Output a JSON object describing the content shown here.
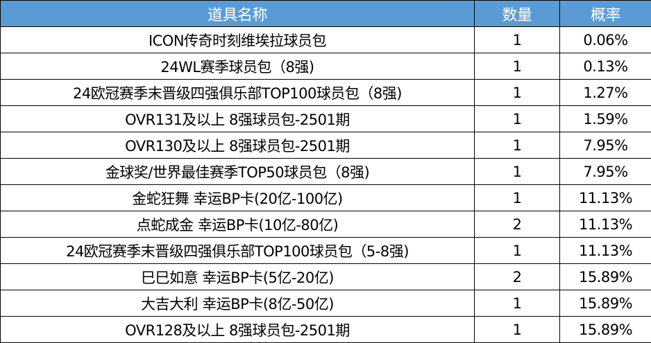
{
  "header": {
    "name": "道具名称",
    "qty": "数量",
    "prob": "概率"
  },
  "header_color": "#5b9bd5",
  "rows": [
    {
      "name": "ICON传奇时刻维埃拉球员包",
      "qty": "1",
      "prob": "0.06%"
    },
    {
      "name": "24WL赛季球员包（8强)",
      "qty": "1",
      "prob": "0.13%"
    },
    {
      "name": "24欧冠赛季末晋级四强俱乐部TOP100球员包（8强)",
      "qty": "1",
      "prob": "1.27%"
    },
    {
      "name": "OVR131及以上 8强球员包-2501期",
      "qty": "1",
      "prob": "1.59%"
    },
    {
      "name": "OVR130及以上 8强球员包-2501期",
      "qty": "1",
      "prob": "7.95%"
    },
    {
      "name": "金球奖/世界最佳赛季TOP50球员包（8强)",
      "qty": "1",
      "prob": "7.95%"
    },
    {
      "name": "金蛇狂舞 幸运BP卡(20亿-100亿)",
      "qty": "1",
      "prob": "11.13%"
    },
    {
      "name": "点蛇成金 幸运BP卡(10亿-80亿)",
      "qty": "2",
      "prob": "11.13%"
    },
    {
      "name": "24欧冠赛季末晋级四强俱乐部TOP100球员包（5-8强)",
      "qty": "1",
      "prob": "11.13%"
    },
    {
      "name": "巳巳如意 幸运BP卡(5亿-20亿)",
      "qty": "2",
      "prob": "15.89%"
    },
    {
      "name": "大吉大利 幸运BP卡(8亿-50亿)",
      "qty": "1",
      "prob": "15.89%"
    },
    {
      "name": "OVR128及以上 8强球员包-2501期",
      "qty": "1",
      "prob": "15.89%"
    }
  ]
}
